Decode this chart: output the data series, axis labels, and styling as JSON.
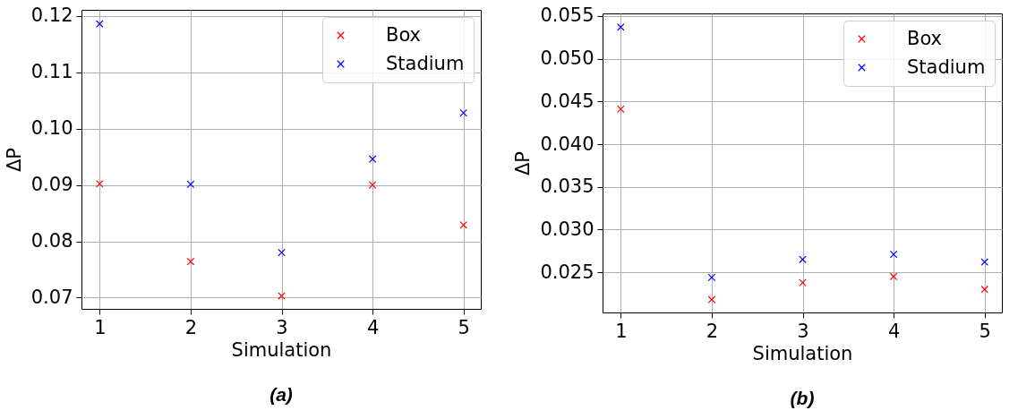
{
  "chart_data": [
    {
      "type": "scatter",
      "xlabel": "Simulation",
      "ylabel": "ΔP",
      "annotations": [
        "(a)"
      ],
      "x": [
        1,
        2,
        3,
        4,
        5
      ],
      "xlim": [
        0.8,
        5.19
      ],
      "xticks": [
        1,
        2,
        3,
        4,
        5
      ],
      "ylim": [
        0.068,
        0.1211
      ],
      "yticks": [
        0.07,
        0.08,
        0.09,
        {
          "value": 0.1,
          "label": "0.10"
        },
        0.11,
        0.12
      ],
      "grid": true,
      "legend": "top right",
      "marker": "cross",
      "series": [
        {
          "name": "Box",
          "color": "#ff0000",
          "values": [
            0.0902,
            0.0764,
            0.0703,
            0.09,
            0.0829
          ]
        },
        {
          "name": "Stadium",
          "color": "#0000ff",
          "values": [
            0.1186,
            0.0901,
            0.078,
            0.0946,
            0.1028
          ]
        }
      ]
    },
    {
      "type": "scatter",
      "xlabel": "Simulation",
      "ylabel": "ΔP",
      "annotations": [
        "(b)"
      ],
      "x": [
        1,
        2,
        3,
        4,
        5
      ],
      "xlim": [
        0.8,
        5.19
      ],
      "xticks": [
        1,
        2,
        3,
        4,
        5
      ],
      "ylim": [
        0.0203,
        0.0553
      ],
      "yticks": [
        0.025,
        {
          "value": 0.03,
          "label": "0.030"
        },
        0.035,
        {
          "value": 0.04,
          "label": "0.040"
        },
        0.045,
        {
          "value": 0.05,
          "label": "0.050"
        },
        0.055
      ],
      "grid": true,
      "legend": "top right",
      "marker": "cross",
      "series": [
        {
          "name": "Box",
          "color": "#ff0000",
          "values": [
            0.0441,
            0.0218,
            0.0238,
            0.0245,
            0.023
          ]
        },
        {
          "name": "Stadium",
          "color": "#0000ff",
          "values": [
            0.0537,
            0.0244,
            0.0265,
            0.0271,
            0.0262
          ]
        }
      ]
    }
  ]
}
